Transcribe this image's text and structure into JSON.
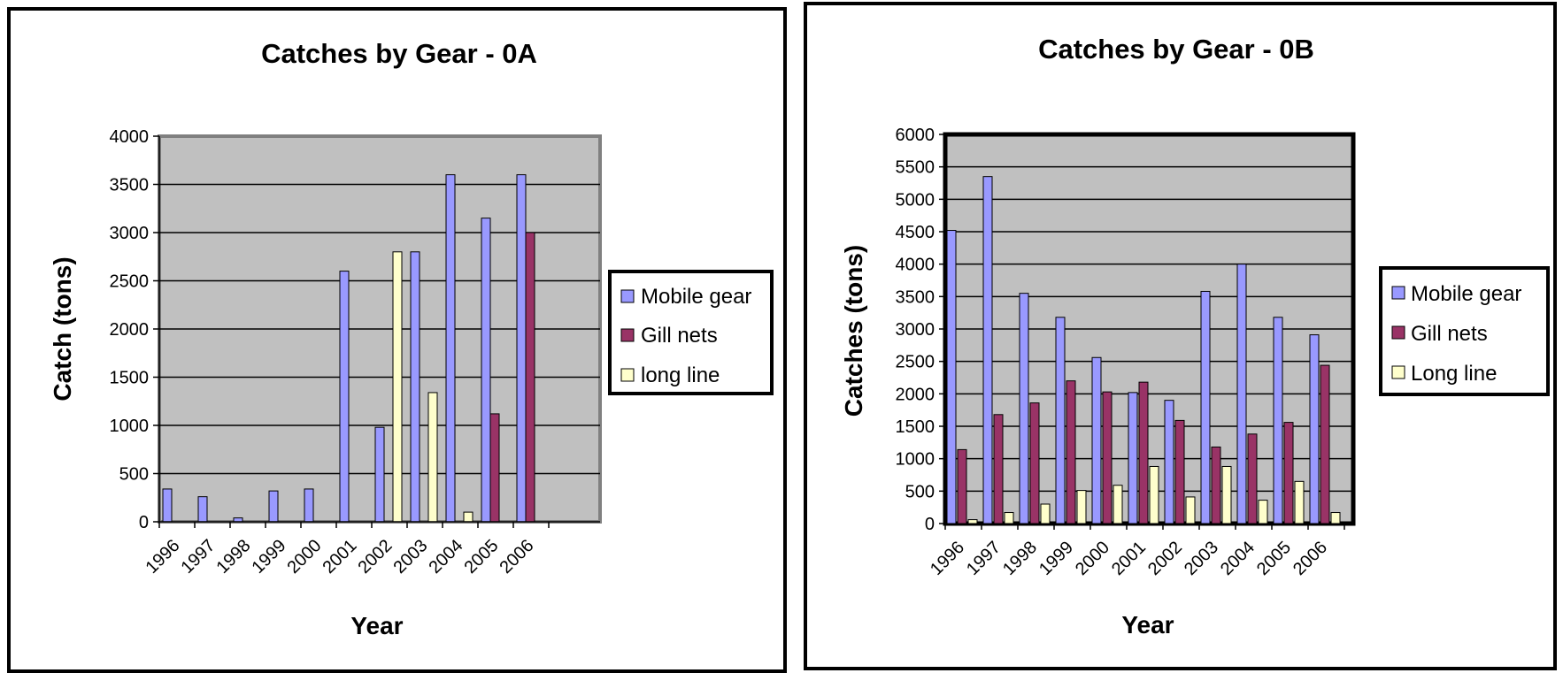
{
  "chart_data": [
    {
      "type": "bar",
      "title": "Catches by Gear - 0A",
      "xlabel": "Year",
      "ylabel": "Catch (tons)",
      "ylim": [
        0,
        4000
      ],
      "yticks": [
        0,
        500,
        1000,
        1500,
        2000,
        2500,
        3000,
        3500,
        4000
      ],
      "grid": true,
      "legend_position": "right",
      "categories": [
        "1996",
        "1997",
        "1998",
        "1999",
        "2000",
        "2001",
        "2002",
        "2003",
        "2004",
        "2005",
        "2006"
      ],
      "series": [
        {
          "name": "Mobile gear",
          "color": "#9999FF",
          "values": [
            340,
            260,
            40,
            320,
            340,
            2600,
            980,
            2800,
            3600,
            3150,
            3600
          ]
        },
        {
          "name": "Gill nets",
          "color": "#993366",
          "values": [
            0,
            0,
            0,
            0,
            0,
            0,
            0,
            0,
            0,
            1120,
            3000
          ]
        },
        {
          "name": "long line",
          "color": "#FFFFCC",
          "values": [
            0,
            0,
            0,
            0,
            0,
            0,
            2800,
            1340,
            100,
            0,
            0
          ]
        }
      ]
    },
    {
      "type": "bar",
      "title": "Catches by Gear - 0B",
      "xlabel": "Year",
      "ylabel": "Catches (tons)",
      "ylim": [
        0,
        6000
      ],
      "yticks": [
        0,
        500,
        1000,
        1500,
        2000,
        2500,
        3000,
        3500,
        4000,
        4500,
        5000,
        5500,
        6000
      ],
      "grid": true,
      "legend_position": "right",
      "categories": [
        "1996",
        "1997",
        "1998",
        "1999",
        "2000",
        "2001",
        "2002",
        "2003",
        "2004",
        "2005",
        "2006"
      ],
      "series": [
        {
          "name": "Mobile gear",
          "color": "#9999FF",
          "values": [
            4520,
            5350,
            3550,
            3180,
            2560,
            2020,
            1900,
            3580,
            4000,
            3180,
            2910
          ]
        },
        {
          "name": "Gill nets",
          "color": "#993366",
          "values": [
            1140,
            1680,
            1860,
            2200,
            2030,
            2180,
            1590,
            1180,
            1380,
            1560,
            2440
          ]
        },
        {
          "name": "Long line",
          "color": "#FFFFCC",
          "values": [
            60,
            170,
            300,
            510,
            590,
            880,
            410,
            880,
            360,
            650,
            170
          ]
        }
      ]
    }
  ]
}
